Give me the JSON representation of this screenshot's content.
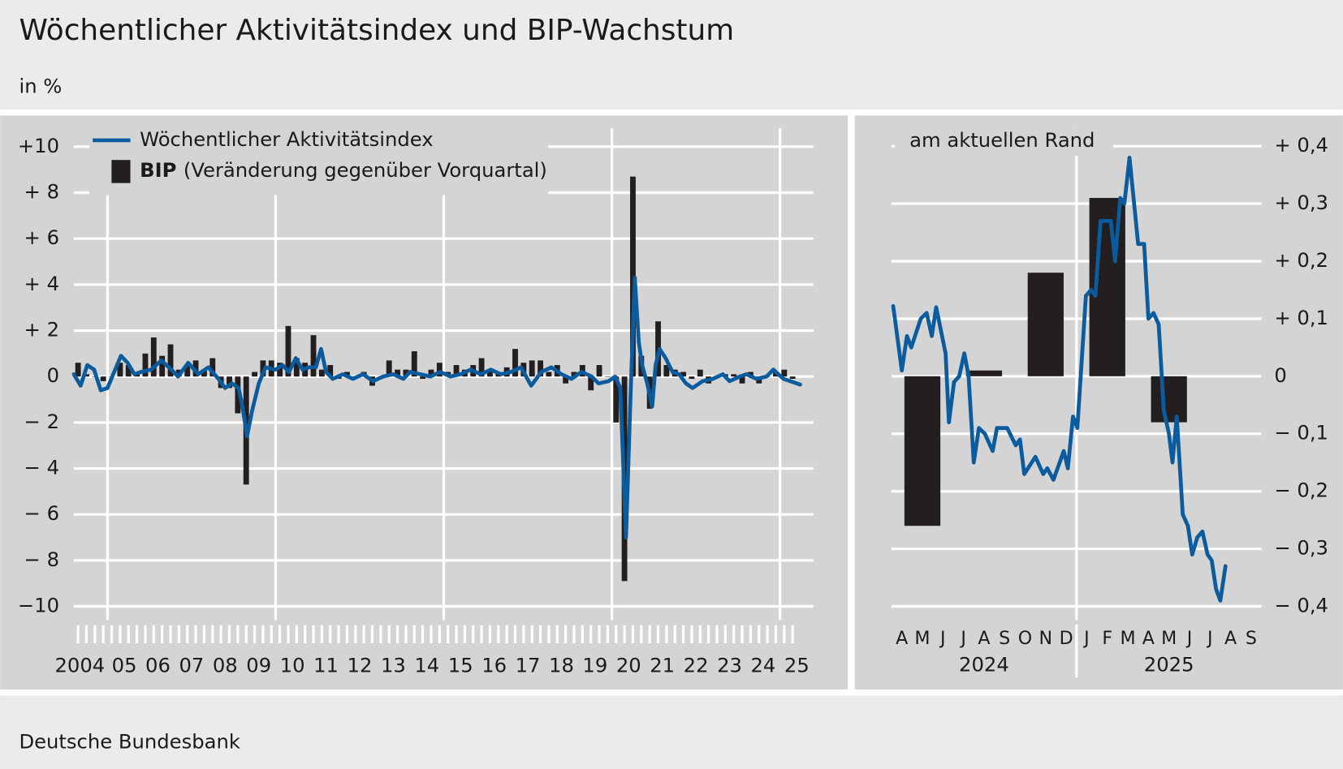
{
  "title": "Wöchentlicher Aktivitätsindex und BIP-Wachstum",
  "subtitle": "in %",
  "source": "Deutsche Bundesbank",
  "chart_data": [
    {
      "type": "combo",
      "xlim": [
        2004,
        2026
      ],
      "xticks": [
        {
          "value": 2004.5,
          "label": "2004"
        },
        {
          "value": 2005.5,
          "label": "05"
        },
        {
          "value": 2006.5,
          "label": "06"
        },
        {
          "value": 2007.5,
          "label": "07"
        },
        {
          "value": 2008.5,
          "label": "08"
        },
        {
          "value": 2009.5,
          "label": "09"
        },
        {
          "value": 2010.5,
          "label": "10"
        },
        {
          "value": 2011.5,
          "label": "11"
        },
        {
          "value": 2012.5,
          "label": "12"
        },
        {
          "value": 2013.5,
          "label": "13"
        },
        {
          "value": 2014.5,
          "label": "14"
        },
        {
          "value": 2015.5,
          "label": "15"
        },
        {
          "value": 2016.5,
          "label": "16"
        },
        {
          "value": 2017.5,
          "label": "17"
        },
        {
          "value": 2018.5,
          "label": "18"
        },
        {
          "value": 2019.5,
          "label": "19"
        },
        {
          "value": 2020.5,
          "label": "20"
        },
        {
          "value": 2021.5,
          "label": "21"
        },
        {
          "value": 2022.5,
          "label": "22"
        },
        {
          "value": 2023.5,
          "label": "23"
        },
        {
          "value": 2024.5,
          "label": "24"
        },
        {
          "value": 2025.5,
          "label": "25"
        }
      ],
      "xgrid": [
        2005,
        2010,
        2015,
        2020,
        2025
      ],
      "ylim": [
        -10.6,
        10.8
      ],
      "yticks": [
        {
          "value": 10,
          "label": "+10"
        },
        {
          "value": 8,
          "label": "+ 8"
        },
        {
          "value": 6,
          "label": "+ 6"
        },
        {
          "value": 4,
          "label": "+ 4"
        },
        {
          "value": 2,
          "label": "+ 2"
        },
        0,
        {
          "value": -2,
          "label": "− 2"
        },
        {
          "value": -4,
          "label": "− 4"
        },
        {
          "value": -6,
          "label": "− 6"
        },
        {
          "value": -8,
          "label": "− 8"
        },
        {
          "value": -10,
          "label": "−10"
        }
      ],
      "grid": true,
      "legend_note": "(Veränderung gegenüber Vorquartal)",
      "series": [
        {
          "name": "Wöchentlicher Aktivitätsindex",
          "type": "line",
          "color": "#0b5c9e",
          "x": [
            2004.0,
            2004.2,
            2004.4,
            2004.6,
            2004.8,
            2005.0,
            2005.2,
            2005.4,
            2005.6,
            2005.8,
            2006.0,
            2006.3,
            2006.6,
            2006.9,
            2007.1,
            2007.4,
            2007.7,
            2008.0,
            2008.3,
            2008.5,
            2008.7,
            2008.9,
            2009.0,
            2009.15,
            2009.3,
            2009.5,
            2009.7,
            2010.0,
            2010.2,
            2010.4,
            2010.6,
            2010.8,
            2011.0,
            2011.2,
            2011.35,
            2011.5,
            2011.7,
            2012.0,
            2012.3,
            2012.6,
            2012.9,
            2013.2,
            2013.5,
            2013.8,
            2014.0,
            2014.3,
            2014.6,
            2014.9,
            2015.2,
            2015.5,
            2015.8,
            2016.1,
            2016.4,
            2016.7,
            2017.0,
            2017.3,
            2017.6,
            2017.9,
            2018.2,
            2018.5,
            2018.8,
            2019.1,
            2019.4,
            2019.6,
            2019.9,
            2020.1,
            2020.25,
            2020.42,
            2020.55,
            2020.68,
            2020.8,
            2020.9,
            2021.05,
            2021.2,
            2021.3,
            2021.42,
            2021.6,
            2021.8,
            2022.0,
            2022.2,
            2022.4,
            2022.7,
            2023.0,
            2023.3,
            2023.5,
            2023.8,
            2024.0,
            2024.3,
            2024.6,
            2024.8,
            2025.1,
            2025.6
          ],
          "values": [
            0.1,
            -0.4,
            0.5,
            0.3,
            -0.6,
            -0.5,
            0.2,
            0.9,
            0.6,
            0.1,
            0.2,
            0.3,
            0.7,
            0.3,
            0.0,
            0.6,
            0.1,
            0.4,
            -0.1,
            -0.5,
            -0.3,
            -0.5,
            -1.2,
            -2.6,
            -1.5,
            -0.3,
            0.4,
            0.3,
            0.5,
            0.2,
            0.8,
            0.3,
            0.4,
            0.4,
            1.2,
            0.2,
            -0.1,
            0.1,
            -0.1,
            0.1,
            -0.2,
            0.0,
            0.1,
            -0.1,
            0.2,
            0.1,
            0.0,
            0.2,
            0.0,
            0.1,
            0.3,
            0.1,
            0.3,
            0.1,
            0.2,
            0.4,
            -0.4,
            0.2,
            0.4,
            0.1,
            -0.1,
            0.2,
            0.0,
            -0.3,
            -0.2,
            0.0,
            -0.5,
            -7.0,
            -1.0,
            4.3,
            1.5,
            0.5,
            -0.3,
            -1.3,
            0.5,
            1.2,
            0.8,
            0.2,
            0.1,
            -0.3,
            -0.5,
            -0.2,
            -0.1,
            0.1,
            -0.2,
            0.0,
            0.1,
            -0.1,
            0.0,
            0.3,
            -0.1,
            -0.35
          ]
        },
        {
          "name": "BIP",
          "type": "bar",
          "color": "#231f20",
          "x": [
            2004.125,
            2004.375,
            2004.625,
            2004.875,
            2005.125,
            2005.375,
            2005.625,
            2005.875,
            2006.125,
            2006.375,
            2006.625,
            2006.875,
            2007.125,
            2007.375,
            2007.625,
            2007.875,
            2008.125,
            2008.375,
            2008.625,
            2008.875,
            2009.125,
            2009.375,
            2009.625,
            2009.875,
            2010.125,
            2010.375,
            2010.625,
            2010.875,
            2011.125,
            2011.375,
            2011.625,
            2011.875,
            2012.125,
            2012.375,
            2012.625,
            2012.875,
            2013.125,
            2013.375,
            2013.625,
            2013.875,
            2014.125,
            2014.375,
            2014.625,
            2014.875,
            2015.125,
            2015.375,
            2015.625,
            2015.875,
            2016.125,
            2016.375,
            2016.625,
            2016.875,
            2017.125,
            2017.375,
            2017.625,
            2017.875,
            2018.125,
            2018.375,
            2018.625,
            2018.875,
            2019.125,
            2019.375,
            2019.625,
            2019.875,
            2020.125,
            2020.375,
            2020.625,
            2020.875,
            2021.125,
            2021.375,
            2021.625,
            2021.875,
            2022.125,
            2022.375,
            2022.625,
            2022.875,
            2023.125,
            2023.375,
            2023.625,
            2023.875,
            2024.125,
            2024.375,
            2024.625,
            2024.875,
            2025.125,
            2025.375
          ],
          "values": [
            0.6,
            0.1,
            0.0,
            -0.2,
            0.0,
            0.6,
            0.5,
            0.2,
            1.0,
            1.7,
            0.9,
            1.4,
            0.3,
            0.5,
            0.7,
            0.3,
            0.8,
            -0.5,
            -0.5,
            -1.6,
            -4.7,
            0.2,
            0.7,
            0.7,
            0.6,
            2.2,
            0.8,
            0.6,
            1.8,
            0.3,
            0.5,
            -0.1,
            0.2,
            0.0,
            0.2,
            -0.4,
            -0.1,
            0.7,
            0.3,
            0.3,
            1.1,
            -0.1,
            0.3,
            0.6,
            0.2,
            0.5,
            0.3,
            0.5,
            0.8,
            0.3,
            0.2,
            0.4,
            1.2,
            0.6,
            0.7,
            0.7,
            0.2,
            0.5,
            -0.3,
            0.2,
            0.5,
            -0.6,
            0.5,
            0.0,
            -2.0,
            -8.9,
            8.7,
            0.9,
            -1.4,
            2.4,
            0.5,
            0.3,
            0.2,
            -0.1,
            0.3,
            -0.3,
            0.0,
            0.1,
            0.1,
            -0.3,
            0.2,
            -0.3,
            0.0,
            0.2,
            0.3,
            -0.1
          ]
        }
      ]
    },
    {
      "type": "combo",
      "title": "am aktuellen Rand",
      "xlim": [
        0,
        18
      ],
      "categories": [
        "A",
        "M",
        "J",
        "J",
        "A",
        "S",
        "O",
        "N",
        "D",
        "J",
        "F",
        "M",
        "A",
        "M",
        "J",
        "J",
        "A",
        "S"
      ],
      "groups": [
        {
          "label": "2024",
          "start": 0,
          "end": 9
        },
        {
          "label": "2025",
          "start": 9,
          "end": 18
        }
      ],
      "ylim": [
        -0.424,
        0.431
      ],
      "yticks": [
        {
          "value": 0.4,
          "label": "+ 0,4"
        },
        {
          "value": 0.3,
          "label": "+ 0,3"
        },
        {
          "value": 0.2,
          "label": "+ 0,2"
        },
        {
          "value": 0.1,
          "label": "+ 0,1"
        },
        0,
        {
          "value": -0.1,
          "label": "− 0,1"
        },
        {
          "value": -0.2,
          "label": "− 0,2"
        },
        {
          "value": -0.3,
          "label": "− 0,3"
        },
        {
          "value": -0.4,
          "label": "− 0,4"
        }
      ],
      "grid": true,
      "series": [
        {
          "type": "line",
          "color": "#0b5c9e",
          "x": [
            0.08,
            0.5,
            0.75,
            0.96,
            1.42,
            1.71,
            1.96,
            2.17,
            2.63,
            2.79,
            3.04,
            3.29,
            3.54,
            3.75,
            4.0,
            4.25,
            4.54,
            4.92,
            5.13,
            5.63,
            6.04,
            6.25,
            6.46,
            7.0,
            7.38,
            7.58,
            7.88,
            8.38,
            8.58,
            8.83,
            9.04,
            9.46,
            9.71,
            9.92,
            10.17,
            10.67,
            10.88,
            11.13,
            11.33,
            11.58,
            12.0,
            12.29,
            12.5,
            12.75,
            13.0,
            13.25,
            13.5,
            13.67,
            13.88,
            14.17,
            14.42,
            14.63,
            14.88,
            15.13,
            15.38,
            15.58,
            15.79,
            16.0,
            16.25
          ],
          "values": [
            0.122,
            0.01,
            0.07,
            0.05,
            0.1,
            0.11,
            0.07,
            0.12,
            0.04,
            -0.08,
            -0.01,
            0.0,
            0.04,
            0.0,
            -0.15,
            -0.09,
            -0.1,
            -0.13,
            -0.09,
            -0.09,
            -0.12,
            -0.11,
            -0.17,
            -0.14,
            -0.17,
            -0.16,
            -0.18,
            -0.13,
            -0.16,
            -0.07,
            -0.09,
            0.14,
            0.15,
            0.14,
            0.27,
            0.27,
            0.2,
            0.31,
            0.3,
            0.38,
            0.23,
            0.23,
            0.1,
            0.11,
            0.09,
            -0.06,
            -0.1,
            -0.15,
            -0.07,
            -0.24,
            -0.26,
            -0.31,
            -0.28,
            -0.27,
            -0.31,
            -0.32,
            -0.37,
            -0.39,
            -0.33
          ]
        },
        {
          "type": "bar",
          "color": "#231f20",
          "x": [
            1.5,
            4.5,
            7.5,
            10.5,
            13.5
          ],
          "values": [
            -0.26,
            0.01,
            0.18,
            0.31,
            -0.08
          ]
        }
      ]
    }
  ]
}
